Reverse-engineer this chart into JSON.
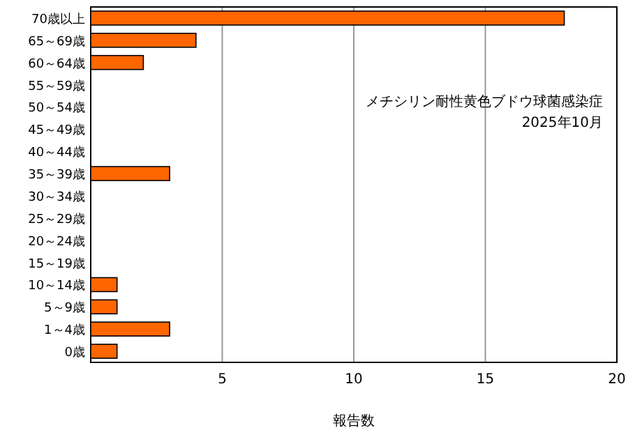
{
  "chart_data": {
    "type": "bar",
    "orientation": "horizontal",
    "categories": [
      "70歳以上",
      "65～69歳",
      "60～64歳",
      "55～59歳",
      "50～54歳",
      "45～49歳",
      "40～44歳",
      "35～39歳",
      "30～34歳",
      "25～29歳",
      "20～24歳",
      "15～19歳",
      "10～14歳",
      "5～9歳",
      "1～4歳",
      "0歳"
    ],
    "values": [
      18,
      4,
      2,
      0,
      0,
      0,
      0,
      3,
      0,
      0,
      0,
      0,
      1,
      1,
      3,
      1
    ],
    "color": "#ff6600",
    "xlim": [
      0,
      20
    ],
    "xticks": [
      5,
      10,
      15,
      20
    ],
    "xlabel": "報告数",
    "grid": "x",
    "annotations": [
      "メチシリン耐性黄色ブドウ球菌感染症",
      "2025年10月"
    ]
  }
}
